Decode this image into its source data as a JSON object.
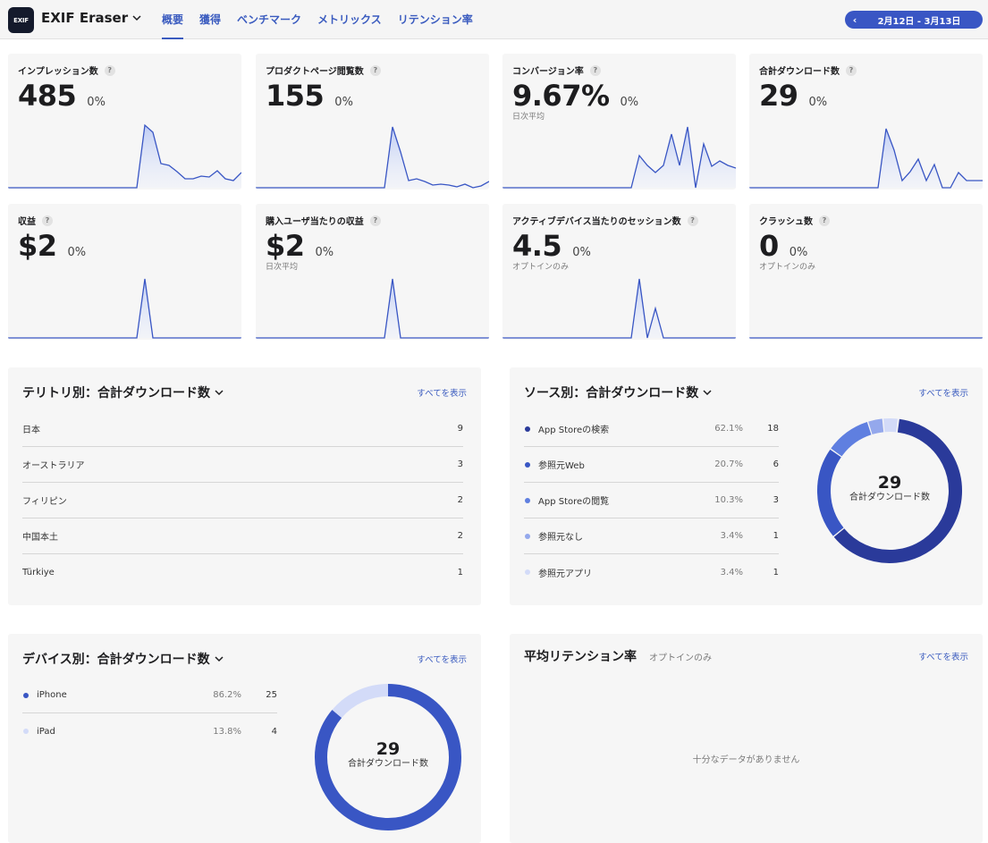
{
  "header": {
    "logo_text": "EXIF",
    "app_name": "EXIF Eraser",
    "tabs": [
      {
        "label": "概要",
        "active": true
      },
      {
        "label": "獲得",
        "active": false
      },
      {
        "label": "ベンチマーク",
        "active": false
      },
      {
        "label": "メトリックス",
        "active": false
      },
      {
        "label": "リテンション率",
        "active": false
      }
    ],
    "date_range": "2月12日 - 3月13日",
    "accent_color": "#3956c4"
  },
  "metrics": [
    {
      "title": "インプレッション数",
      "value": "485",
      "change": "0%",
      "sub": "",
      "trend": [
        0,
        0,
        0,
        0,
        0,
        0,
        0,
        0,
        0,
        0,
        0,
        0,
        0,
        0,
        0,
        0,
        0,
        70,
        62,
        27,
        25,
        18,
        10,
        10,
        13,
        12,
        19,
        10,
        8,
        17
      ]
    },
    {
      "title": "プロダクトページ閲覧数",
      "value": "155",
      "change": "0%",
      "sub": "",
      "trend": [
        0,
        0,
        0,
        0,
        0,
        0,
        0,
        0,
        0,
        0,
        0,
        0,
        0,
        0,
        0,
        0,
        0,
        68,
        40,
        8,
        10,
        7,
        3,
        4,
        3,
        1,
        4,
        0,
        2,
        7
      ]
    },
    {
      "title": "コンバージョン率",
      "value": "9.67%",
      "change": "0%",
      "sub": "日次平均",
      "trend": [
        0,
        0,
        0,
        0,
        0,
        0,
        0,
        0,
        0,
        0,
        0,
        0,
        0,
        0,
        0,
        0,
        0,
        36,
        25,
        17,
        25,
        60,
        25,
        68,
        0,
        49,
        24,
        30,
        25,
        22
      ]
    },
    {
      "title": "合計ダウンロード数",
      "value": "29",
      "change": "0%",
      "sub": "",
      "trend": [
        0,
        0,
        0,
        0,
        0,
        0,
        0,
        0,
        0,
        0,
        0,
        0,
        0,
        0,
        0,
        0,
        0,
        66,
        42,
        8,
        18,
        32,
        8,
        26,
        0,
        0,
        17,
        8,
        8,
        8
      ]
    },
    {
      "title": "収益",
      "value": "$2",
      "change": "0%",
      "sub": "",
      "trend": [
        0,
        0,
        0,
        0,
        0,
        0,
        0,
        0,
        0,
        0,
        0,
        0,
        0,
        0,
        0,
        0,
        0,
        66,
        0,
        0,
        0,
        0,
        0,
        0,
        0,
        0,
        0,
        0,
        0,
        0
      ]
    },
    {
      "title": "購入ユーザ当たりの収益",
      "value": "$2",
      "change": "0%",
      "sub": "日次平均",
      "trend": [
        0,
        0,
        0,
        0,
        0,
        0,
        0,
        0,
        0,
        0,
        0,
        0,
        0,
        0,
        0,
        0,
        0,
        66,
        0,
        0,
        0,
        0,
        0,
        0,
        0,
        0,
        0,
        0,
        0,
        0
      ]
    },
    {
      "title": "アクティブデバイス当たりのセッション数",
      "value": "4.5",
      "change": "0%",
      "sub": "オプトインのみ",
      "trend": [
        0,
        0,
        0,
        0,
        0,
        0,
        0,
        0,
        0,
        0,
        0,
        0,
        0,
        0,
        0,
        0,
        0,
        66,
        0,
        33,
        0,
        0,
        0,
        0,
        0,
        0,
        0,
        0,
        0,
        0
      ]
    },
    {
      "title": "クラッシュ数",
      "value": "0",
      "change": "0%",
      "sub": "オプトインのみ",
      "trend": [
        0,
        0,
        0,
        0,
        0,
        0,
        0,
        0,
        0,
        0,
        0,
        0,
        0,
        0,
        0,
        0,
        0,
        0,
        0,
        0,
        0,
        0,
        0,
        0,
        0,
        0,
        0,
        0,
        0,
        0
      ]
    }
  ],
  "territory": {
    "title": "テリトリ別：合計ダウンロード数",
    "see_all": "すべてを表示",
    "rows": [
      {
        "name": "日本",
        "count": "9"
      },
      {
        "name": "オーストラリア",
        "count": "3"
      },
      {
        "name": "フィリピン",
        "count": "2"
      },
      {
        "name": "中国本土",
        "count": "2"
      },
      {
        "name": "Türkiye",
        "count": "1"
      }
    ]
  },
  "source": {
    "title": "ソース別：合計ダウンロード数",
    "see_all": "すべてを表示",
    "total": "29",
    "total_label": "合計ダウンロード数",
    "rows": [
      {
        "name": "App Storeの検索",
        "pct": "62.1%",
        "count": "18",
        "fraction": 0.621,
        "color": "#2a3a9a"
      },
      {
        "name": "参照元Web",
        "pct": "20.7%",
        "count": "6",
        "fraction": 0.207,
        "color": "#3956c4"
      },
      {
        "name": "App Storeの閲覧",
        "pct": "10.3%",
        "count": "3",
        "fraction": 0.103,
        "color": "#5f7fe0"
      },
      {
        "name": "参照元なし",
        "pct": "3.4%",
        "count": "1",
        "fraction": 0.034,
        "color": "#94a8ec"
      },
      {
        "name": "参照元アプリ",
        "pct": "3.4%",
        "count": "1",
        "fraction": 0.034,
        "color": "#d3dbf8"
      }
    ]
  },
  "device": {
    "title": "デバイス別：合計ダウンロード数",
    "see_all": "すべてを表示",
    "total": "29",
    "total_label": "合計ダウンロード数",
    "rows": [
      {
        "name": "iPhone",
        "pct": "86.2%",
        "count": "25",
        "fraction": 0.862,
        "color": "#3956c4"
      },
      {
        "name": "iPad",
        "pct": "13.8%",
        "count": "4",
        "fraction": 0.138,
        "color": "#d3dbf8"
      }
    ]
  },
  "retention": {
    "title": "平均リテンション率",
    "subtitle": "オプトインのみ",
    "see_all": "すべてを表示",
    "empty": "十分なデータがありません"
  }
}
